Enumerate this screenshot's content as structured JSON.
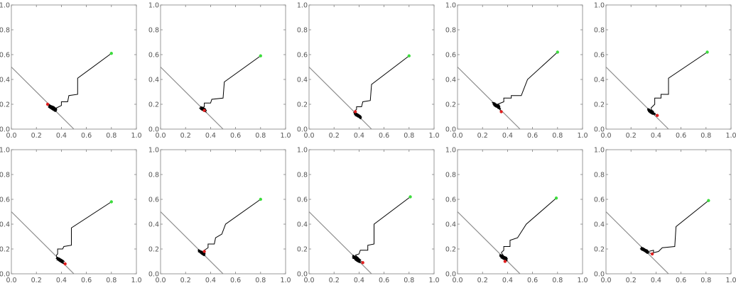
{
  "chart_data": {
    "type": "line",
    "panel_count": 10,
    "rows": 2,
    "cols": 5,
    "xlim": [
      0,
      1.0
    ],
    "ylim": [
      0,
      1.0
    ],
    "x_ticks": [
      "0.0",
      "0.2",
      "0.4",
      "0.6",
      "0.8",
      "1.0"
    ],
    "y_ticks": [
      "0.0",
      "0.2",
      "0.4",
      "0.6",
      "0.8",
      "1.0"
    ],
    "grid": false,
    "legend": "none",
    "colors": {
      "frame": "#7f7f7f",
      "tick_label": "#555555",
      "reference_line": "#8c8c8c",
      "path": "#000000",
      "start_point": "#3ddc3d",
      "end_point": "#e02020"
    },
    "reference_line": {
      "x": [
        0.0,
        0.5
      ],
      "y": [
        0.5,
        0.0
      ]
    },
    "panels": [
      {
        "path": {
          "x": [
            0.8,
            0.53,
            0.53,
            0.46,
            0.45,
            0.4,
            0.4,
            0.36
          ],
          "y": [
            0.61,
            0.41,
            0.28,
            0.27,
            0.22,
            0.22,
            0.19,
            0.17
          ]
        },
        "cluster": {
          "cx": 0.33,
          "cy": 0.17,
          "spread": 0.045
        },
        "start": {
          "x": 0.8,
          "y": 0.61
        },
        "end": {
          "x": 0.29,
          "y": 0.2
        }
      },
      {
        "path": {
          "x": [
            0.8,
            0.51,
            0.5,
            0.41,
            0.4,
            0.35,
            0.35,
            0.33
          ],
          "y": [
            0.59,
            0.38,
            0.25,
            0.24,
            0.21,
            0.21,
            0.18,
            0.17
          ]
        },
        "cluster": {
          "cx": 0.34,
          "cy": 0.16,
          "spread": 0.035
        },
        "start": {
          "x": 0.8,
          "y": 0.59
        },
        "end": {
          "x": 0.35,
          "y": 0.15
        }
      },
      {
        "path": {
          "x": [
            0.8,
            0.5,
            0.49,
            0.43,
            0.42,
            0.38,
            0.38,
            0.36
          ],
          "y": [
            0.59,
            0.36,
            0.23,
            0.22,
            0.18,
            0.18,
            0.16,
            0.14
          ]
        },
        "cluster": {
          "cx": 0.39,
          "cy": 0.11,
          "spread": 0.04
        },
        "start": {
          "x": 0.8,
          "y": 0.59
        },
        "end": {
          "x": 0.37,
          "y": 0.14
        }
      },
      {
        "path": {
          "x": [
            0.8,
            0.56,
            0.51,
            0.43,
            0.43,
            0.37,
            0.37,
            0.32
          ],
          "y": [
            0.62,
            0.4,
            0.27,
            0.27,
            0.25,
            0.25,
            0.22,
            0.2
          ]
        },
        "cluster": {
          "cx": 0.31,
          "cy": 0.19,
          "spread": 0.045
        },
        "start": {
          "x": 0.8,
          "y": 0.62
        },
        "end": {
          "x": 0.35,
          "y": 0.14
        }
      },
      {
        "path": {
          "x": [
            0.81,
            0.5,
            0.5,
            0.44,
            0.44,
            0.39,
            0.39,
            0.36
          ],
          "y": [
            0.62,
            0.41,
            0.28,
            0.28,
            0.25,
            0.25,
            0.2,
            0.17
          ]
        },
        "cluster": {
          "cx": 0.36,
          "cy": 0.14,
          "spread": 0.04
        },
        "start": {
          "x": 0.81,
          "y": 0.62
        },
        "end": {
          "x": 0.41,
          "y": 0.11
        }
      },
      {
        "path": {
          "x": [
            0.8,
            0.48,
            0.48,
            0.42,
            0.41,
            0.37,
            0.37,
            0.36
          ],
          "y": [
            0.58,
            0.37,
            0.23,
            0.22,
            0.2,
            0.2,
            0.16,
            0.15
          ]
        },
        "cluster": {
          "cx": 0.39,
          "cy": 0.11,
          "spread": 0.04
        },
        "start": {
          "x": 0.8,
          "y": 0.58
        },
        "end": {
          "x": 0.43,
          "y": 0.08
        }
      },
      {
        "path": {
          "x": [
            0.8,
            0.52,
            0.49,
            0.44,
            0.43,
            0.38,
            0.38,
            0.35
          ],
          "y": [
            0.6,
            0.4,
            0.32,
            0.29,
            0.24,
            0.24,
            0.21,
            0.19
          ]
        },
        "cluster": {
          "cx": 0.33,
          "cy": 0.17,
          "spread": 0.038
        },
        "start": {
          "x": 0.8,
          "y": 0.6
        },
        "end": {
          "x": 0.35,
          "y": 0.18
        }
      },
      {
        "path": {
          "x": [
            0.81,
            0.52,
            0.52,
            0.47,
            0.47,
            0.41,
            0.4,
            0.37
          ],
          "y": [
            0.62,
            0.4,
            0.24,
            0.23,
            0.19,
            0.19,
            0.16,
            0.15
          ]
        },
        "cluster": {
          "cx": 0.38,
          "cy": 0.12,
          "spread": 0.045
        },
        "start": {
          "x": 0.81,
          "y": 0.62
        },
        "end": {
          "x": 0.43,
          "y": 0.09
        }
      },
      {
        "path": {
          "x": [
            0.79,
            0.55,
            0.48,
            0.42,
            0.42,
            0.37,
            0.37,
            0.35
          ],
          "y": [
            0.61,
            0.4,
            0.29,
            0.27,
            0.22,
            0.22,
            0.19,
            0.17
          ]
        },
        "cluster": {
          "cx": 0.37,
          "cy": 0.13,
          "spread": 0.042
        },
        "start": {
          "x": 0.79,
          "y": 0.61
        },
        "end": {
          "x": 0.38,
          "y": 0.1
        }
      },
      {
        "path": {
          "x": [
            0.82,
            0.56,
            0.55,
            0.45,
            0.42,
            0.38,
            0.38,
            0.34
          ],
          "y": [
            0.59,
            0.38,
            0.22,
            0.21,
            0.18,
            0.17,
            0.19,
            0.18
          ]
        },
        "cluster": {
          "cx": 0.31,
          "cy": 0.19,
          "spread": 0.04
        },
        "start": {
          "x": 0.82,
          "y": 0.59
        },
        "end": {
          "x": 0.37,
          "y": 0.16
        }
      }
    ]
  }
}
